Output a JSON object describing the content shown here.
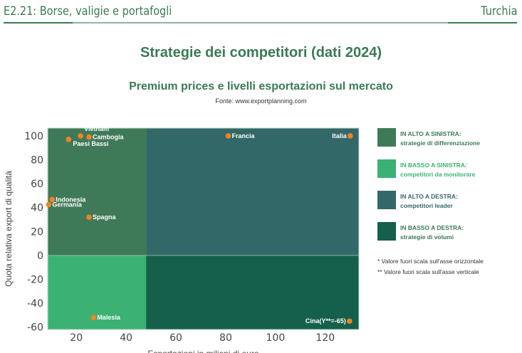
{
  "header": {
    "left": "E2.21: Borse, valigie e portafogli",
    "right": "Turchia"
  },
  "title": "Strategie dei competitori (dati 2024)",
  "subtitle": "Premium prices e livelli esportazioni sul mercato",
  "source": "Fonte: www.exportplanning.com",
  "chart_data": {
    "type": "scatter",
    "xlabel": "Esportazioni in milioni di euro",
    "ylabel": "Quota relativa export di qualità",
    "xlim": [
      8.5,
      133.5
    ],
    "ylim": [
      -62,
      106.5
    ],
    "xticks": [
      20,
      40,
      60,
      80,
      100,
      120
    ],
    "yticks": [
      -60,
      -40,
      -20,
      0,
      20,
      40,
      60,
      80,
      100
    ],
    "quadrant_split": {
      "x": 48,
      "y": 0
    },
    "quadrant_colors": {
      "top_left": "#3f7a58",
      "bottom_left": "#3bb273",
      "top_right": "#336868",
      "bottom_right": "#15604a"
    },
    "point_color": "#f5821f",
    "points": [
      {
        "label": "Vietnam",
        "x": 21.7,
        "y": 100
      },
      {
        "label": "Cambogia",
        "x": 25.1,
        "y": 99
      },
      {
        "label": "Paesi Bassi",
        "x": 16.9,
        "y": 97
      },
      {
        "label": "Indonesia",
        "x": 10.3,
        "y": 46.7
      },
      {
        "label": "Germania",
        "x": 8.9,
        "y": 42.5
      },
      {
        "label": "Spagna",
        "x": 25.1,
        "y": 32
      },
      {
        "label": "Francia",
        "x": 81,
        "y": 100
      },
      {
        "label": "Italia",
        "x": 130,
        "y": 100
      },
      {
        "label": "Malesia",
        "x": 26.9,
        "y": -52
      },
      {
        "label": "Cina(Y**=-65)",
        "x": 129.7,
        "y": -55
      }
    ]
  },
  "legend": [
    {
      "title": "IN ALTO A SINISTRA:",
      "desc": "strategie di differenziazione",
      "color": "#3f7a58"
    },
    {
      "title": "IN BASSO A SINISTRA:",
      "desc": "competitori da monitorare",
      "color": "#3bb273"
    },
    {
      "title": "IN ALTO A DESTRA:",
      "desc": "competitori leader",
      "color": "#336868"
    },
    {
      "title": "IN BASSO A DESTRA:",
      "desc": "strategie di volumi",
      "color": "#15604a"
    }
  ],
  "notes": [
    "* Valore fuori scala sull'asse orizzontale",
    "** Valore fuori scala sull'asse verticale"
  ]
}
